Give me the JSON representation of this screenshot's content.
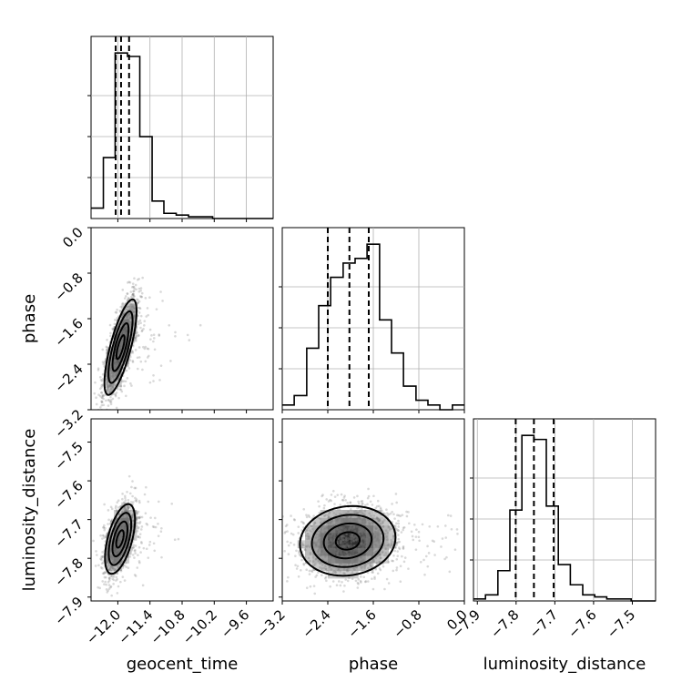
{
  "chart_data": {
    "type": "corner",
    "parameters": [
      "geocent_time",
      "phase",
      "luminosity_distance"
    ],
    "axes": {
      "geocent_time": {
        "label": "geocent_time",
        "range": [
          -12.5,
          -9.1
        ],
        "ticks": [
          -12.0,
          -11.4,
          -10.8,
          -10.2,
          -9.6
        ],
        "tick_labels": [
          "−12.0",
          "−11.4",
          "−10.8",
          "−10.2",
          "−9.6"
        ]
      },
      "phase": {
        "label": "phase",
        "range": [
          -3.2,
          0.0
        ],
        "ticks": [
          -3.2,
          -2.4,
          -1.6,
          -0.8,
          0.0
        ],
        "tick_labels": [
          "−3.2",
          "−2.4",
          "−1.6",
          "−0.8",
          "0.0"
        ]
      },
      "luminosity_distance": {
        "label": "luminosity_distance",
        "range": [
          -7.91,
          -7.44
        ],
        "ticks": [
          -7.9,
          -7.8,
          -7.7,
          -7.6,
          -7.5
        ],
        "tick_labels": [
          "−7.9",
          "−7.8",
          "−7.7",
          "−7.6",
          "−7.5"
        ]
      }
    },
    "histograms": {
      "geocent_time": {
        "bins": [
          -12.5,
          -12.27,
          -12.05,
          -11.82,
          -11.59,
          -11.36,
          -11.14,
          -10.91,
          -10.68,
          -10.45,
          -10.23,
          -10.0,
          -9.77,
          -9.55,
          -9.32,
          -9.1
        ],
        "counts": [
          6,
          35,
          95,
          93,
          47,
          10,
          3,
          2,
          1,
          1,
          0,
          0,
          0,
          0,
          0
        ],
        "quantiles": [
          -12.04,
          -11.94,
          -11.79
        ]
      },
      "phase": {
        "bins": [
          -3.2,
          -2.99,
          -2.77,
          -2.56,
          -2.35,
          -2.13,
          -1.92,
          -1.71,
          -1.49,
          -1.28,
          -1.07,
          -0.85,
          -0.64,
          -0.43,
          -0.21,
          0.0
        ],
        "counts": [
          1,
          3,
          13,
          22,
          28,
          31,
          32,
          35,
          19,
          12,
          5,
          2,
          1,
          0,
          1
        ],
        "quantiles": [
          -2.4,
          -2.02,
          -1.68
        ]
      },
      "luminosity_distance": {
        "bins": [
          -7.91,
          -7.879,
          -7.847,
          -7.816,
          -7.785,
          -7.754,
          -7.722,
          -7.691,
          -7.66,
          -7.628,
          -7.597,
          -7.566,
          -7.535,
          -7.503,
          -7.472,
          -7.44
        ],
        "counts": [
          1,
          3,
          15,
          45,
          82,
          80,
          47,
          18,
          8,
          3,
          2,
          1,
          1,
          0,
          0
        ],
        "quantiles": [
          -7.801,
          -7.754,
          -7.703
        ]
      }
    },
    "scatter_2d": [
      {
        "x": "geocent_time",
        "y": "phase",
        "center": [
          -11.95,
          -2.1
        ],
        "spread": [
          0.15,
          0.42
        ],
        "correlation": 0.75,
        "contour_levels_sigma": [
          0.5,
          1.0,
          1.5,
          2.0
        ]
      },
      {
        "x": "geocent_time",
        "y": "luminosity_distance",
        "center": [
          -11.96,
          -7.75
        ],
        "spread": [
          0.14,
          0.045
        ],
        "correlation": 0.55,
        "contour_levels_sigma": [
          0.5,
          1.0,
          1.5,
          2.0
        ]
      },
      {
        "x": "phase",
        "y": "luminosity_distance",
        "center": [
          -2.05,
          -7.755
        ],
        "spread": [
          0.42,
          0.045
        ],
        "correlation": 0.1,
        "contour_levels_sigma": [
          0.5,
          1.0,
          1.5,
          2.0
        ]
      }
    ],
    "grid": true
  }
}
